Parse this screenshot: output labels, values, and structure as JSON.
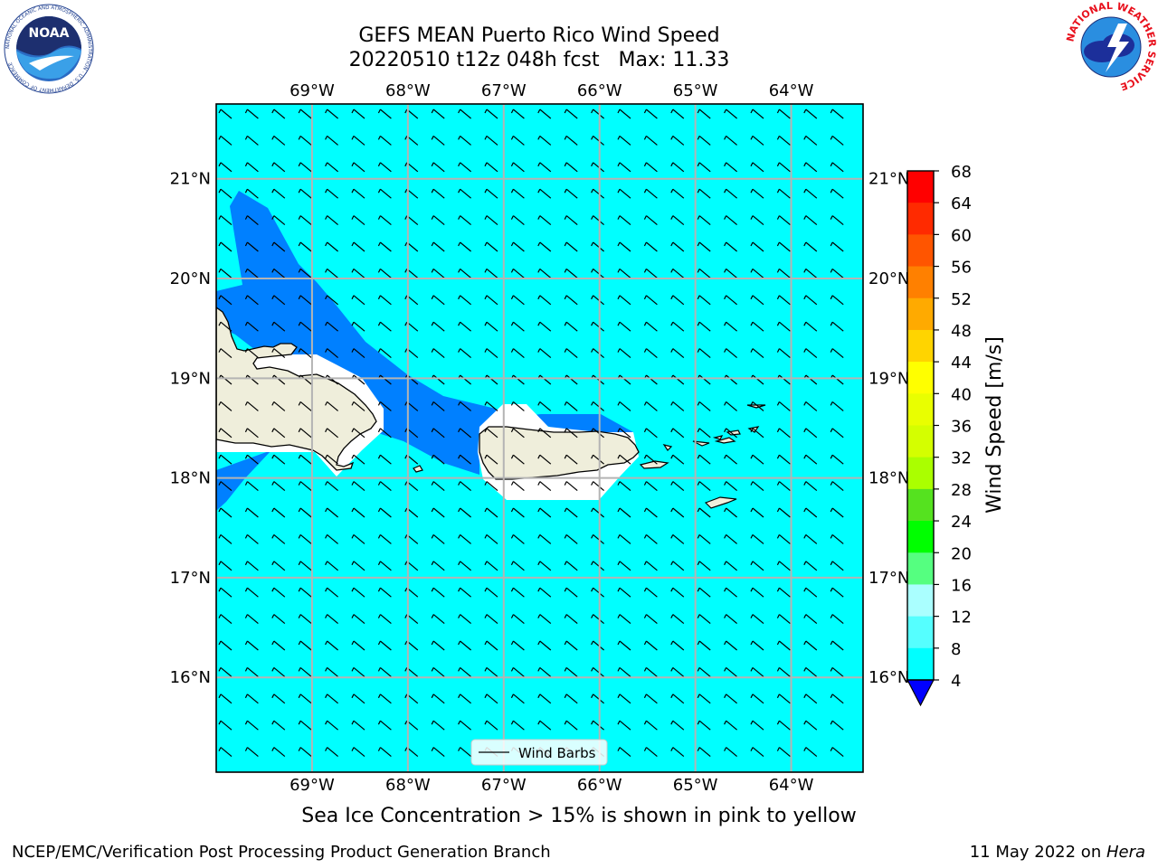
{
  "title": {
    "line1": "GEFS MEAN Puerto Rico Wind Speed",
    "line2": "20220510 t12z 048h fcst   Max: 11.33"
  },
  "map": {
    "lon_labels": [
      "69°W",
      "68°W",
      "67°W",
      "66°W",
      "65°W",
      "64°W"
    ],
    "lat_labels": [
      "21°N",
      "20°N",
      "19°N",
      "18°N",
      "17°N",
      "16°N"
    ],
    "lon_range": [
      -70.0,
      -63.25
    ],
    "lat_range": [
      15.05,
      21.75
    ],
    "legend_label": "Wind Barbs",
    "ocean_color": "#00ffff",
    "low_wind_color": "#0080ff",
    "land_color": "#efeedb"
  },
  "colorbar": {
    "label": "Wind Speed [m/s]",
    "ticks": [
      "68",
      "64",
      "60",
      "56",
      "52",
      "48",
      "44",
      "40",
      "36",
      "32",
      "28",
      "24",
      "20",
      "16",
      "12",
      "8",
      "4"
    ],
    "colors": [
      "#ff0000",
      "#ff2a00",
      "#ff5500",
      "#ff8000",
      "#ffaa00",
      "#ffd400",
      "#ffff00",
      "#e9ff00",
      "#d4ff00",
      "#aaff00",
      "#55e21f",
      "#00ff00",
      "#55ff80",
      "#aaffff",
      "#55ffff",
      "#00ffff",
      "#0080ff"
    ],
    "underflow_color": "#0000ff"
  },
  "caption": "Sea Ice Concentration > 15% is shown in pink to yellow",
  "footer": {
    "left": "NCEP/EMC/Verification Post Processing Product Generation Branch",
    "date": "11 May 2022 on ",
    "host": "Hera"
  },
  "logos": {
    "noaa_text": "NOAA",
    "noaa_ring": "NATIONAL OCEANIC AND ATMOSPHERIC ADMINISTRATION · U.S. DEPARTMENT OF COMMERCE",
    "nws_ring": "NATIONAL WEATHER SERVICE"
  }
}
